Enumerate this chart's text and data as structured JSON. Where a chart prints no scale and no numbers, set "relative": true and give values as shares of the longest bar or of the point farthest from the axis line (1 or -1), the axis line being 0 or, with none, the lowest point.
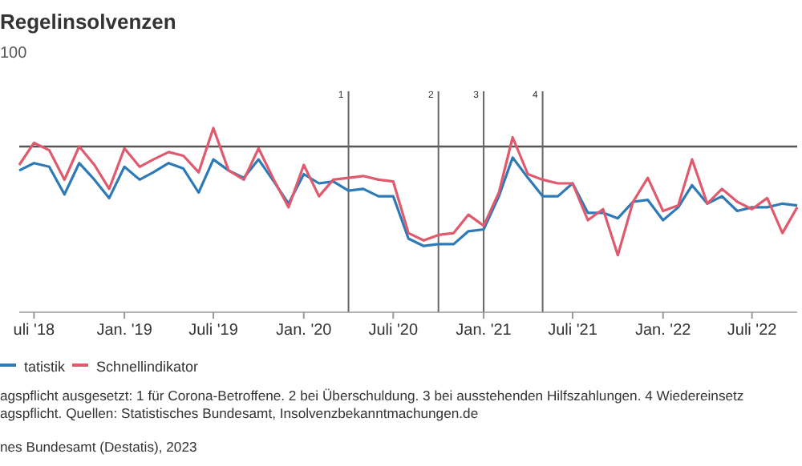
{
  "chart_data": {
    "type": "line",
    "title": "Regelinsolvenzen",
    "subtitle": "100",
    "relative": true,
    "legend": "bottom",
    "marker": "none",
    "line_style": "solid",
    "x": [
      "2018-06",
      "2018-07",
      "2018-08",
      "2018-09",
      "2018-10",
      "2018-11",
      "2018-12",
      "2019-01",
      "2019-02",
      "2019-03",
      "2019-04",
      "2019-05",
      "2019-06",
      "2019-07",
      "2019-08",
      "2019-09",
      "2019-10",
      "2019-11",
      "2019-12",
      "2020-01",
      "2020-02",
      "2020-03",
      "2020-04",
      "2020-05",
      "2020-06",
      "2020-07",
      "2020-08",
      "2020-09",
      "2020-10",
      "2020-11",
      "2020-12",
      "2021-01",
      "2021-02",
      "2021-03",
      "2021-04",
      "2021-05",
      "2021-06",
      "2021-07",
      "2021-08",
      "2021-09",
      "2021-10",
      "2021-11",
      "2021-12",
      "2022-01",
      "2022-02",
      "2022-03",
      "2022-04",
      "2022-05",
      "2022-06",
      "2022-07",
      "2022-08",
      "2022-09",
      "2022-10"
    ],
    "xlim": [
      "2018-06",
      "2022-10"
    ],
    "xticks": [
      {
        "value": "2018-07",
        "label": "uli '18"
      },
      {
        "value": "2019-01",
        "label": "Jan. '19"
      },
      {
        "value": "2019-07",
        "label": "Juli '19"
      },
      {
        "value": "2020-01",
        "label": "Jan. '20"
      },
      {
        "value": "2020-07",
        "label": "Juli '20"
      },
      {
        "value": "2021-01",
        "label": "Jan. '21"
      },
      {
        "value": "2021-07",
        "label": "Juli '21"
      },
      {
        "value": "2022-01",
        "label": "Jan. '22"
      },
      {
        "value": "2022-07",
        "label": "Juli '22"
      }
    ],
    "series": [
      {
        "name": "tatistik",
        "color": "#2e7ab8",
        "values": [
          0.77,
          0.81,
          0.79,
          0.64,
          0.81,
          0.72,
          0.62,
          0.79,
          0.72,
          0.76,
          0.81,
          0.78,
          0.65,
          0.83,
          0.77,
          0.73,
          0.83,
          0.71,
          0.59,
          0.75,
          0.7,
          0.71,
          0.66,
          0.67,
          0.63,
          0.63,
          0.4,
          0.36,
          0.37,
          0.37,
          0.44,
          0.45,
          0.63,
          0.84,
          0.73,
          0.63,
          0.63,
          0.7,
          0.54,
          0.54,
          0.51,
          0.6,
          0.61,
          0.5,
          0.57,
          0.69,
          0.59,
          0.63,
          0.55,
          0.57,
          0.57,
          0.59,
          0.58
        ]
      },
      {
        "name": "Schnellindikator",
        "color": "#e05a6e",
        "values": [
          0.8,
          0.92,
          0.88,
          0.72,
          0.9,
          0.8,
          0.67,
          0.89,
          0.79,
          0.83,
          0.87,
          0.85,
          0.76,
          1,
          0.77,
          0.72,
          0.89,
          0.72,
          0.57,
          0.8,
          0.63,
          0.72,
          0.73,
          0.74,
          0.72,
          0.71,
          0.43,
          0.39,
          0.42,
          0.43,
          0.53,
          0.47,
          0.65,
          0.95,
          0.75,
          0.72,
          0.7,
          0.7,
          0.5,
          0.56,
          0.31,
          0.6,
          0.73,
          0.55,
          0.58,
          0.83,
          0.59,
          0.67,
          0.6,
          0.56,
          0.62,
          0.43,
          0.57
        ]
      }
    ],
    "ref_lines": [
      {
        "axis": "y",
        "value": 0.9,
        "label": null,
        "color": "#555555"
      },
      {
        "axis": "x",
        "value": "2020-04",
        "label": "1",
        "color": "#666666"
      },
      {
        "axis": "x",
        "value": "2020-10",
        "label": "2",
        "color": "#666666"
      },
      {
        "axis": "x",
        "value": "2021-01",
        "label": "3",
        "color": "#666666"
      },
      {
        "axis": "x",
        "value": "2021-05",
        "label": "4",
        "color": "#666666"
      }
    ],
    "annotations": [
      "agspflicht ausgesetzt: 1 für Corona-Betroffene. 2 bei Überschuldung. 3 bei ausstehenden Hilfszahlungen. 4 Wiedereinsetz",
      "agspflicht. Quellen: Statistisches Bundesamt, Insolvenzbekanntmachungen.de",
      "nes Bundesamt (Destatis), 2023"
    ]
  }
}
